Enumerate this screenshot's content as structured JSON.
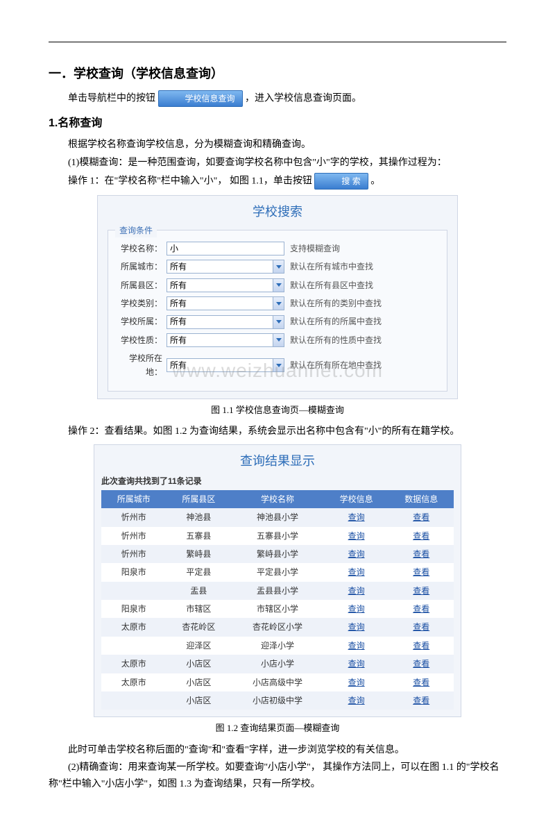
{
  "section1": {
    "title": "一．学校查询（学校信息查询）",
    "intro_a": "单击导航栏中的按钮",
    "intro_btn": "学校信息查询",
    "intro_b": "，进入学校信息查询页面。",
    "sub1_title": "1.名称查询",
    "p1": "根据学校名称查询学校信息，分为模糊查询和精确查询。",
    "p2": "(1)模糊查询：是一种范围查询，如要查询学校名称中包含\"小\"字的学校，其操作过程为：",
    "p3_a": "操作 1：在\"学校名称\"栏中输入\"小\"， 如图 1.1，单击按钮",
    "search_btn": "搜  索",
    "p3_b": "。",
    "caption1": "图 1.1 学校信息查询页—模糊查询",
    "p4": "操作 2：查看结果。如图 1.2 为查询结果，系统会显示出名称中包含有\"小\"的所有在籍学校。",
    "caption2": "图 1.2  查询结果页面—模糊查询",
    "p5": "此时可单击学校名称后面的\"查询\"和\"查看\"字样，进一步浏览学校的有关信息。",
    "p6": "(2)精确查询：用来查询某一所学校。如要查询\"小店小学\"，  其操作方法同上，可以在图 1.1 的\"学校名称\"栏中输入\"小店小学\"，如图 1.3 为查询结果，只有一所学校。"
  },
  "searchForm": {
    "panel_title": "学校搜索",
    "legend": "查询条件",
    "rows": [
      {
        "label": "学校名称：",
        "value": "小",
        "dropdown": false,
        "hint": "支持模糊查询"
      },
      {
        "label": "所属城市：",
        "value": "所有",
        "dropdown": true,
        "hint": "默认在所有城市中查找"
      },
      {
        "label": "所属县区：",
        "value": "所有",
        "dropdown": true,
        "hint": "默认在所有县区中查找"
      },
      {
        "label": "学校类别：",
        "value": "所有",
        "dropdown": true,
        "hint": "默认在所有的类别中查找"
      },
      {
        "label": "学校所属：",
        "value": "所有",
        "dropdown": true,
        "hint": "默认在所有的所属中查找"
      },
      {
        "label": "学校性质：",
        "value": "所有",
        "dropdown": true,
        "hint": "默认在所有的性质中查找"
      },
      {
        "label": "学校所在地：",
        "value": "所有",
        "dropdown": true,
        "hint": "默认在所有所在地中查找"
      }
    ],
    "watermark": "www.weizhuannet.com"
  },
  "results": {
    "title": "查询结果显示",
    "count_line": "此次查询共找到了11条记录",
    "columns": [
      "所属城市",
      "所属县区",
      "学校名称",
      "学校信息",
      "数据信息"
    ],
    "link_query": "查询",
    "link_view": "查看",
    "rows": [
      {
        "c0": "忻州市",
        "c1": "神池县",
        "c2": "神池县小学"
      },
      {
        "c0": "忻州市",
        "c1": "五寨县",
        "c2": "五寨县小学"
      },
      {
        "c0": "忻州市",
        "c1": "繁峙县",
        "c2": "繁峙县小学"
      },
      {
        "c0": "阳泉市",
        "c1": "平定县",
        "c2": "平定县小学"
      },
      {
        "c0": "",
        "c1": "盂县",
        "c2": "盂县县小学"
      },
      {
        "c0": "阳泉市",
        "c1": "市辖区",
        "c2": "市辖区小学"
      },
      {
        "c0": "太原市",
        "c1": "杏花岭区",
        "c2": "杏花岭区小学"
      },
      {
        "c0": "",
        "c1": "迎泽区",
        "c2": "迎泽小学"
      },
      {
        "c0": "太原市",
        "c1": "小店区",
        "c2": "小店小学"
      },
      {
        "c0": "太原市",
        "c1": "小店区",
        "c2": "小店高级中学"
      },
      {
        "c0": "",
        "c1": "小店区",
        "c2": "小店初级中学"
      }
    ]
  },
  "colors": {
    "header_bg": "#4e7fc8",
    "panel_bg": "#f2f5fa",
    "border": "#cfd6e4",
    "link": "#1a4fa3",
    "title_color": "#2d6db8"
  }
}
